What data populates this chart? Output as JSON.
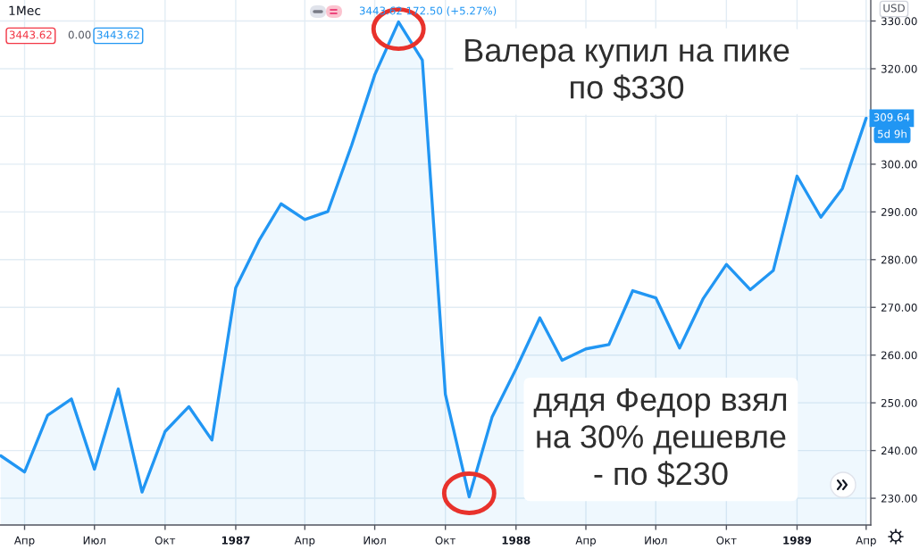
{
  "chart_data": {
    "type": "area",
    "title": "1Мес",
    "color": "#2196f3",
    "x": [
      "1986-03",
      "1986-04",
      "1986-05",
      "1986-06",
      "1986-07",
      "1986-08",
      "1986-09",
      "1986-10",
      "1986-11",
      "1986-12",
      "1987-01",
      "1987-02",
      "1987-03",
      "1987-04",
      "1987-05",
      "1987-06",
      "1987-07",
      "1987-08",
      "1987-09",
      "1987-10",
      "1987-11",
      "1987-12",
      "1988-01",
      "1988-02",
      "1988-03",
      "1988-04",
      "1988-05",
      "1988-06",
      "1988-07",
      "1988-08",
      "1988-09",
      "1988-10",
      "1988-11",
      "1988-12",
      "1989-01",
      "1989-02",
      "1989-03",
      "1989-04"
    ],
    "values": [
      238.9,
      235.5,
      247.4,
      250.8,
      236.1,
      252.9,
      231.3,
      244.0,
      249.2,
      242.2,
      274.1,
      284.2,
      291.7,
      288.4,
      290.1,
      304.0,
      318.7,
      329.8,
      321.8,
      251.8,
      230.3,
      247.1,
      257.1,
      267.8,
      258.9,
      261.3,
      262.2,
      273.5,
      272.0,
      261.5,
      271.9,
      279.0,
      273.7,
      277.7,
      297.5,
      288.9,
      294.9,
      309.64
    ],
    "value_labels": [
      null,
      null,
      null,
      null,
      null,
      null,
      null,
      null,
      null,
      null,
      null,
      null,
      null,
      null,
      null,
      null,
      null,
      null,
      null,
      null,
      null,
      null,
      null,
      null,
      null,
      null,
      null,
      null,
      null,
      null,
      null,
      null,
      null,
      null,
      null,
      null,
      null,
      "309.64"
    ],
    "xlim": [
      "1986-02-28",
      "1989-04-07"
    ],
    "xticks": [
      {
        "value": "1986-04",
        "label": "Апр"
      },
      {
        "value": "1986-07",
        "label": "Июл"
      },
      {
        "value": "1986-10",
        "label": "Окт"
      },
      {
        "value": "1987-01",
        "label": "1987"
      },
      {
        "value": "1987-04",
        "label": "Апр"
      },
      {
        "value": "1987-07",
        "label": "Июл"
      },
      {
        "value": "1987-10",
        "label": "Окт"
      },
      {
        "value": "1988-01",
        "label": "1988"
      },
      {
        "value": "1988-04",
        "label": "Апр"
      },
      {
        "value": "1988-07",
        "label": "Июл"
      },
      {
        "value": "1988-10",
        "label": "Окт"
      },
      {
        "value": "1989-01",
        "label": "1989"
      },
      {
        "value": "1989-04",
        "label": "Апр"
      }
    ],
    "ylim": [
      224.4,
      334.4
    ],
    "yticks": [
      {
        "value": 230,
        "label": "230.00"
      },
      {
        "value": 240,
        "label": "240.00"
      },
      {
        "value": 250,
        "label": "250.00"
      },
      {
        "value": 260,
        "label": "260.00"
      },
      {
        "value": 270,
        "label": "270.00"
      },
      {
        "value": 280,
        "label": "280.00"
      },
      {
        "value": 290,
        "label": "290.00"
      },
      {
        "value": 300,
        "label": "300.00"
      },
      {
        "value": 310,
        "label": null
      },
      {
        "value": 320,
        "label": "320.00"
      },
      {
        "value": 330,
        "label": "330.00"
      }
    ],
    "grid": true,
    "annotations": [
      {
        "text": "Валера купил на пике\nпо $330",
        "x": "1987-08",
        "y": 329.8
      },
      {
        "text": "дядя Федор взял\nна 30% дешевле\n- по $230",
        "x": "1987-11",
        "y": 230.3
      },
      "3443.62 172.50 (+5.27%)",
      "3443.62",
      "0.00",
      "3443.62",
      "USD",
      "5d 9h"
    ]
  }
}
